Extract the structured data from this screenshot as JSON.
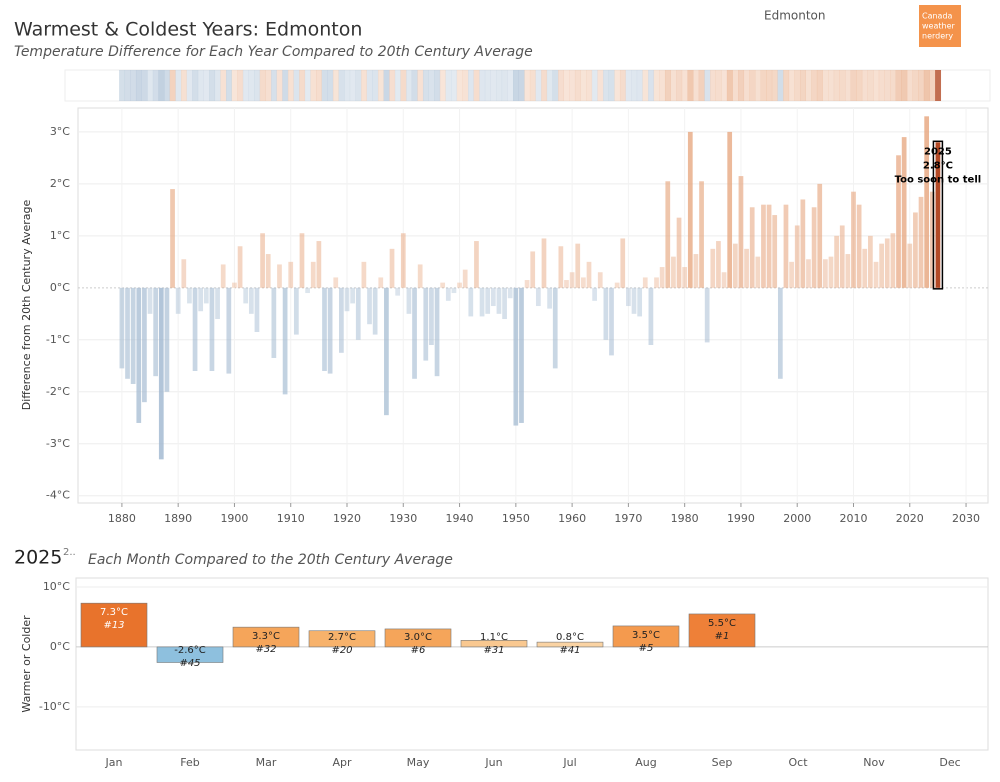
{
  "header": {
    "title": "Warmest & Coldest Years: Edmonton",
    "subtitle": "Temperature Difference for Each Year Compared to 20th Century Average",
    "location": "Edmonton",
    "logo": [
      "Canada",
      "weather",
      "nerdery"
    ]
  },
  "chart_data": [
    {
      "type": "bar",
      "y_label": "Difference from 20th Century Average",
      "x": [
        1880,
        1881,
        1882,
        1883,
        1884,
        1885,
        1886,
        1887,
        1888,
        1889,
        1890,
        1891,
        1892,
        1893,
        1894,
        1895,
        1896,
        1897,
        1898,
        1899,
        1900,
        1901,
        1902,
        1903,
        1904,
        1905,
        1906,
        1907,
        1908,
        1909,
        1910,
        1911,
        1912,
        1913,
        1914,
        1915,
        1916,
        1917,
        1918,
        1919,
        1920,
        1921,
        1922,
        1923,
        1924,
        1925,
        1926,
        1927,
        1928,
        1929,
        1930,
        1931,
        1932,
        1933,
        1934,
        1935,
        1936,
        1937,
        1938,
        1939,
        1940,
        1941,
        1942,
        1943,
        1944,
        1945,
        1946,
        1947,
        1948,
        1949,
        1950,
        1951,
        1952,
        1953,
        1954,
        1955,
        1956,
        1957,
        1958,
        1959,
        1960,
        1961,
        1962,
        1963,
        1964,
        1965,
        1966,
        1967,
        1968,
        1969,
        1970,
        1971,
        1972,
        1973,
        1974,
        1975,
        1976,
        1977,
        1978,
        1979,
        1980,
        1981,
        1982,
        1983,
        1984,
        1985,
        1986,
        1987,
        1988,
        1989,
        1990,
        1991,
        1992,
        1993,
        1994,
        1995,
        1996,
        1997,
        1998,
        1999,
        2000,
        2001,
        2002,
        2003,
        2004,
        2005,
        2006,
        2007,
        2008,
        2009,
        2010,
        2011,
        2012,
        2013,
        2014,
        2015,
        2016,
        2017,
        2018,
        2019,
        2020,
        2021,
        2022,
        2023,
        2024,
        2025
      ],
      "values": [
        -1.55,
        -1.75,
        -1.85,
        -2.6,
        -2.2,
        -0.5,
        -1.7,
        -3.3,
        -2.0,
        1.9,
        -0.5,
        0.55,
        -0.3,
        -1.6,
        -0.45,
        -0.3,
        -1.6,
        -0.6,
        0.45,
        -1.65,
        0.1,
        0.8,
        -0.3,
        -0.5,
        -0.85,
        1.05,
        0.65,
        -1.35,
        0.45,
        -2.05,
        0.5,
        -0.9,
        1.05,
        -0.1,
        0.5,
        0.9,
        -1.6,
        -1.65,
        0.2,
        -1.25,
        -0.45,
        -0.3,
        -1.0,
        0.5,
        -0.7,
        -0.9,
        0.2,
        -2.45,
        0.75,
        -0.15,
        1.05,
        -0.5,
        -1.75,
        0.45,
        -1.4,
        -1.1,
        -1.7,
        0.1,
        -0.25,
        -0.1,
        0.1,
        0.35,
        -0.55,
        0.9,
        -0.55,
        -0.5,
        -0.35,
        -0.5,
        -0.6,
        -0.2,
        -2.65,
        -2.6,
        0.15,
        0.7,
        -0.35,
        0.95,
        -0.4,
        -1.55,
        0.8,
        0.15,
        0.3,
        0.85,
        0.2,
        0.5,
        -0.25,
        0.3,
        -1.0,
        -1.3,
        0.1,
        0.95,
        -0.35,
        -0.5,
        -0.55,
        0.2,
        -1.1,
        0.2,
        0.4,
        2.05,
        0.6,
        1.35,
        0.4,
        3.0,
        0.65,
        2.05,
        -1.05,
        0.75,
        0.9,
        0.3,
        3.0,
        0.85,
        2.15,
        0.75,
        1.55,
        0.6,
        1.6,
        1.6,
        1.4,
        -1.75,
        1.6,
        0.5,
        1.2,
        1.7,
        0.55,
        1.55,
        2.0,
        0.55,
        0.6,
        1.0,
        1.2,
        0.65,
        1.85,
        1.6,
        0.75,
        1.0,
        0.5,
        0.85,
        0.95,
        1.05,
        2.55,
        2.9,
        0.85,
        1.45,
        1.75,
        3.3,
        1.85,
        2.8
      ],
      "positive_color": "#e6a47c",
      "negative_color": "#9fb7cf",
      "highlight_color": "#b34a26",
      "highlight": {
        "x": 2025,
        "label": "2.8°C",
        "note": "Too soon to tell"
      },
      "xlim": [
        1872.2,
        2033.9
      ],
      "xticks": [
        1880,
        1890,
        1900,
        1910,
        1920,
        1930,
        1940,
        1950,
        1960,
        1970,
        1980,
        1990,
        2000,
        2010,
        2020,
        2030
      ],
      "ylim": [
        -4.14,
        3.46
      ],
      "yticks": [
        {
          "value": -4,
          "label": "-4°C"
        },
        {
          "value": -3,
          "label": "-3°C"
        },
        {
          "value": -2,
          "label": "-2°C"
        },
        {
          "value": -1,
          "label": "-1°C"
        },
        {
          "value": 0,
          "label": "0°C"
        },
        {
          "value": 1,
          "label": "1°C"
        },
        {
          "value": 2,
          "label": "2°C"
        },
        {
          "value": 3,
          "label": "3°C"
        }
      ],
      "grid": true
    },
    {
      "type": "bar",
      "title": "2025",
      "title_note": "2..",
      "subtitle": "Each Month Compared to the 20th Century Average",
      "y_label": "Warmer or Colder",
      "categories": [
        "Jan",
        "Feb",
        "Mar",
        "Apr",
        "May",
        "Jun",
        "Jul",
        "Aug",
        "Sep",
        "Oct",
        "Nov",
        "Dec"
      ],
      "values": [
        7.3,
        -2.6,
        3.3,
        2.7,
        3.0,
        1.1,
        0.8,
        3.5,
        5.5,
        null,
        null,
        null
      ],
      "value_labels": [
        "7.3°C",
        "-2.6°C",
        "3.3°C",
        "2.7°C",
        "3.0°C",
        "1.1°C",
        "0.8°C",
        "3.5°C",
        "5.5°C",
        null,
        null,
        null
      ],
      "rank_labels": [
        "#13",
        "#45",
        "#32",
        "#20",
        "#6",
        "#31",
        "#41",
        "#5",
        "#1",
        null,
        null,
        null
      ],
      "colors": [
        "#e8732c",
        "#8ec0de",
        "#f5a55a",
        "#f7b26b",
        "#f5a55a",
        "#f9c890",
        "#fad3a3",
        "#f49a4e",
        "#ee8038",
        null,
        null,
        null
      ],
      "ylim": [
        -17.2,
        11.5
      ],
      "yticks": [
        {
          "value": -10,
          "label": "-10°C"
        },
        {
          "value": 0,
          "label": "0°C"
        },
        {
          "value": 10,
          "label": "10°C"
        }
      ],
      "grid": true
    }
  ]
}
